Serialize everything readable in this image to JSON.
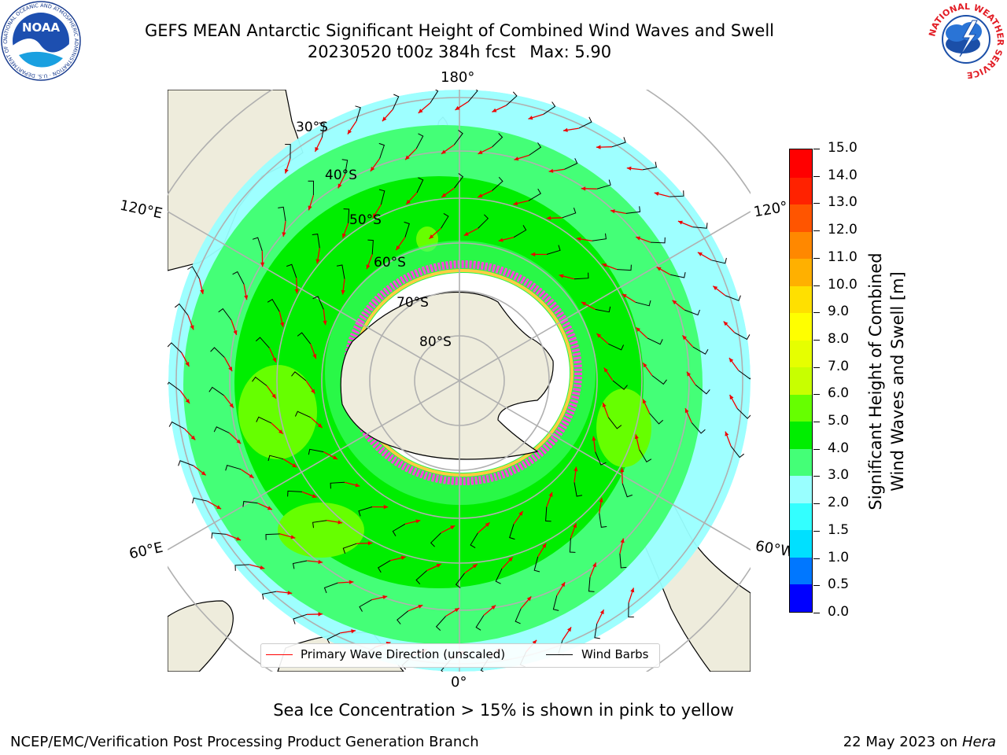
{
  "header": {
    "title_line1": "GEFS MEAN Antarctic Significant Height of Combined Wind Waves and Swell",
    "run": "20230520 t00z 384h fcst",
    "max": "Max: 5.90"
  },
  "logos": {
    "noaa": {
      "text": "NOAA",
      "ring_text": "NATIONAL OCEANIC AND ATMOSPHERIC ADMINISTRATION · U.S. DEPARTMENT OF COMMERCE ·"
    },
    "nws": {
      "ring_text": "NATIONAL WEATHER SERVICE"
    }
  },
  "map": {
    "projection": "south-polar-stereographic",
    "longitude_labels": {
      "top": "180°",
      "upper_left": "120°E",
      "upper_right": "120°",
      "lower_left": "60°E",
      "lower_right": "60°W",
      "bottom": "0°"
    },
    "latitude_labels": [
      "30°S",
      "40°S",
      "50°S",
      "60°S",
      "70°S",
      "80°S"
    ],
    "colors": {
      "land": "#eeecdc",
      "ocean_outside": "#ffffff",
      "ice_fill": "#ffffff",
      "ice_edge": "#ff44dd",
      "ice_inner": "#ffcc44",
      "grid": "#b0b0b0",
      "arrow": "#ee0000",
      "barb": "#000000"
    }
  },
  "legend": {
    "primary_wave": "Primary Wave Direction (unscaled)",
    "wind_barbs": "Wind Barbs",
    "primary_wave_color": "#ff0000",
    "wind_barbs_color": "#000000"
  },
  "colorbar": {
    "label_line1": "Significant Height of Combined",
    "label_line2": "Wind Waves and Swell [m]",
    "ticks": [
      "0.0",
      "0.5",
      "1.0",
      "1.5",
      "2.0",
      "3.0",
      "4.0",
      "5.0",
      "6.0",
      "7.0",
      "8.0",
      "9.0",
      "10.0",
      "11.0",
      "12.0",
      "13.0",
      "14.0",
      "15.0"
    ],
    "colors": [
      "#0000ff",
      "#0077ff",
      "#00e0ff",
      "#33ffff",
      "#99ffff",
      "#44ff77",
      "#00ee00",
      "#66ff00",
      "#c8ff00",
      "#e6ff00",
      "#ffff00",
      "#ffe000",
      "#ffb000",
      "#ff8800",
      "#ff5500",
      "#ff2200",
      "#ff0000"
    ]
  },
  "sea_ice_note": "Sea Ice Concentration > 15% is shown in pink to yellow",
  "footer": {
    "left": "NCEP/EMC/Verification Post Processing Product Generation Branch",
    "date": "22 May 2023 on",
    "host": "Hera"
  }
}
